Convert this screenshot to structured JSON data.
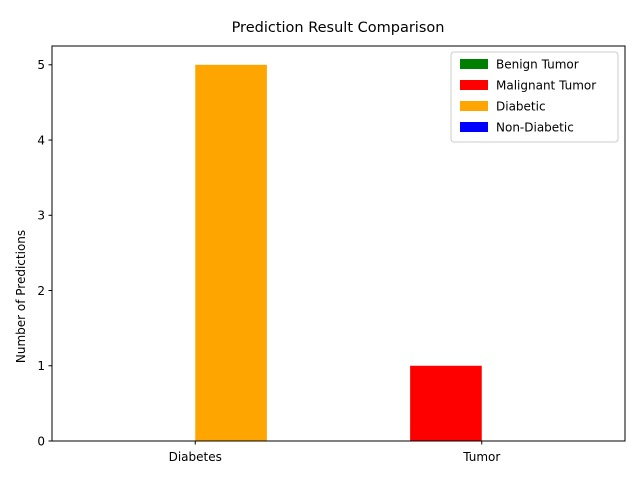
{
  "chart_data": {
    "type": "bar",
    "title": "Prediction Result Comparison",
    "xlabel": "",
    "ylabel": "Number of Predictions",
    "categories": [
      "Diabetes",
      "Tumor"
    ],
    "series": [
      {
        "name": "Benign Tumor",
        "color": "#008000",
        "values": [
          0,
          0
        ]
      },
      {
        "name": "Malignant Tumor",
        "color": "#ff0000",
        "values": [
          0,
          1
        ]
      },
      {
        "name": "Diabetic",
        "color": "#ffa500",
        "values": [
          5,
          0
        ]
      },
      {
        "name": "Non-Diabetic",
        "color": "#0000ff",
        "values": [
          0,
          0
        ]
      }
    ],
    "ylim": [
      0,
      5.25
    ],
    "yticks": [
      0,
      1,
      2,
      3,
      4,
      5
    ],
    "grid": false,
    "legend_position": "top-right"
  }
}
